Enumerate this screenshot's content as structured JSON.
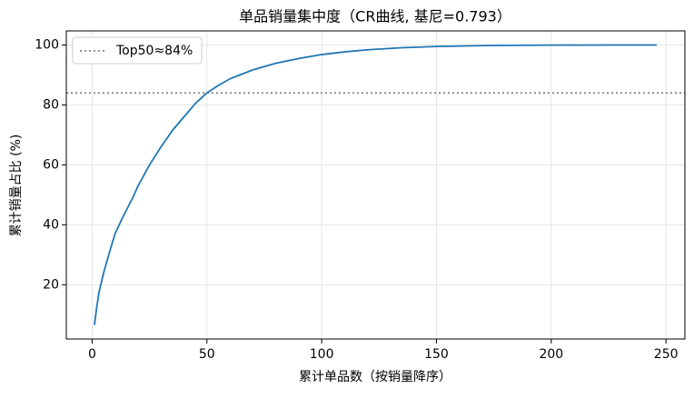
{
  "chart_data": {
    "type": "line",
    "title": "单品销量集中度（CR曲线, 基尼=0.793）",
    "xlabel": "累计单品数（按销量降序）",
    "ylabel": "累计销量占比 (%)",
    "x": [
      1,
      2,
      3,
      5,
      8,
      10,
      13,
      15,
      18,
      20,
      25,
      30,
      35,
      40,
      45,
      50,
      55,
      60,
      70,
      80,
      90,
      100,
      110,
      120,
      135,
      150,
      175,
      200,
      225,
      246
    ],
    "y": [
      6.6,
      12.5,
      17.5,
      24,
      32,
      37,
      42,
      45,
      49.5,
      53,
      60,
      66,
      71.5,
      76,
      80.5,
      84,
      86.5,
      88.7,
      91.7,
      93.9,
      95.5,
      96.8,
      97.7,
      98.4,
      99.1,
      99.5,
      99.85,
      99.95,
      100,
      100
    ],
    "color": "#1f77b4",
    "xlim": [
      -11.25,
      258.25
    ],
    "ylim": [
      1.9,
      104.7
    ],
    "xticks": [
      0,
      50,
      100,
      150,
      200,
      250
    ],
    "yticks": [
      20,
      40,
      60,
      80,
      100
    ],
    "grid": true,
    "reference_lines": [
      {
        "value": 84,
        "label": "Top50≈84%",
        "color": "#808080"
      }
    ],
    "legend": "upper left"
  }
}
